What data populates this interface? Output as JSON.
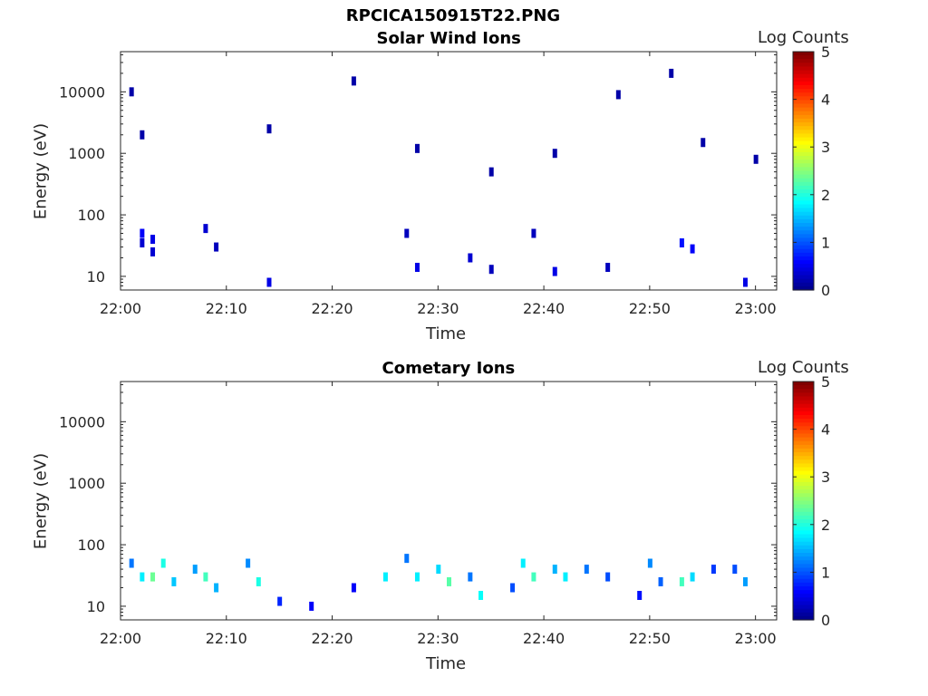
{
  "figure": {
    "title": "RPCICA150915T22.PNG"
  },
  "colorbar": {
    "label": "Log Counts",
    "range": [
      0,
      5
    ],
    "ticks": [
      "0",
      "1",
      "2",
      "3",
      "4",
      "5"
    ]
  },
  "chart_data": [
    {
      "type": "heatmap",
      "title": "Solar Wind Ions",
      "xlabel": "Time",
      "ylabel": "Energy (eV)",
      "yscale": "log",
      "xlim": [
        "22:00",
        "23:02"
      ],
      "ylim": [
        6,
        45000
      ],
      "xticks": [
        "22:00",
        "22:10",
        "22:20",
        "22:30",
        "22:40",
        "22:50",
        "23:00"
      ],
      "yticks": [
        "10",
        "100",
        "1000",
        "10000"
      ],
      "color_scale": "jet",
      "samples": [
        {
          "time": "22:01",
          "energy": 10000,
          "logc": 0.2
        },
        {
          "time": "22:02",
          "energy": 2000,
          "logc": 0.2
        },
        {
          "time": "22:02",
          "energy": 50,
          "logc": 0.6
        },
        {
          "time": "22:02",
          "energy": 35,
          "logc": 0.4
        },
        {
          "time": "22:03",
          "energy": 40,
          "logc": 0.5
        },
        {
          "time": "22:03",
          "energy": 25,
          "logc": 0.4
        },
        {
          "time": "22:08",
          "energy": 60,
          "logc": 0.4
        },
        {
          "time": "22:09",
          "energy": 30,
          "logc": 0.3
        },
        {
          "time": "22:14",
          "energy": 8,
          "logc": 0.5
        },
        {
          "time": "22:14",
          "energy": 2500,
          "logc": 0.2
        },
        {
          "time": "22:22",
          "energy": 15000,
          "logc": 0.2
        },
        {
          "time": "22:27",
          "energy": 50,
          "logc": 0.3
        },
        {
          "time": "22:28",
          "energy": 14,
          "logc": 0.5
        },
        {
          "time": "22:28",
          "energy": 1200,
          "logc": 0.2
        },
        {
          "time": "22:33",
          "energy": 20,
          "logc": 0.4
        },
        {
          "time": "22:35",
          "energy": 13,
          "logc": 0.3
        },
        {
          "time": "22:35",
          "energy": 500,
          "logc": 0.2
        },
        {
          "time": "22:39",
          "energy": 50,
          "logc": 0.3
        },
        {
          "time": "22:41",
          "energy": 12,
          "logc": 0.5
        },
        {
          "time": "22:41",
          "energy": 1000,
          "logc": 0.2
        },
        {
          "time": "22:46",
          "energy": 14,
          "logc": 0.3
        },
        {
          "time": "22:47",
          "energy": 9000,
          "logc": 0.2
        },
        {
          "time": "22:52",
          "energy": 20000,
          "logc": 0.2
        },
        {
          "time": "22:53",
          "energy": 35,
          "logc": 0.7
        },
        {
          "time": "22:54",
          "energy": 28,
          "logc": 0.6
        },
        {
          "time": "22:55",
          "energy": 1500,
          "logc": 0.2
        },
        {
          "time": "22:59",
          "energy": 8,
          "logc": 0.5
        },
        {
          "time": "23:00",
          "energy": 800,
          "logc": 0.2
        }
      ]
    },
    {
      "type": "heatmap",
      "title": "Cometary Ions",
      "xlabel": "Time",
      "ylabel": "Energy (eV)",
      "yscale": "log",
      "xlim": [
        "22:00",
        "23:02"
      ],
      "ylim": [
        6,
        45000
      ],
      "xticks": [
        "22:00",
        "22:10",
        "22:20",
        "22:30",
        "22:40",
        "22:50",
        "23:00"
      ],
      "yticks": [
        "10",
        "100",
        "1000",
        "10000"
      ],
      "color_scale": "jet",
      "samples": [
        {
          "time": "22:01",
          "energy": 50,
          "logc": 1.2
        },
        {
          "time": "22:02",
          "energy": 30,
          "logc": 1.8
        },
        {
          "time": "22:03",
          "energy": 30,
          "logc": 2.4
        },
        {
          "time": "22:04",
          "energy": 50,
          "logc": 2.0
        },
        {
          "time": "22:05",
          "energy": 25,
          "logc": 1.6
        },
        {
          "time": "22:07",
          "energy": 40,
          "logc": 1.4
        },
        {
          "time": "22:08",
          "energy": 30,
          "logc": 2.2
        },
        {
          "time": "22:09",
          "energy": 20,
          "logc": 1.5
        },
        {
          "time": "22:12",
          "energy": 50,
          "logc": 1.3
        },
        {
          "time": "22:13",
          "energy": 25,
          "logc": 2.0
        },
        {
          "time": "22:15",
          "energy": 12,
          "logc": 0.8
        },
        {
          "time": "22:18",
          "energy": 10,
          "logc": 0.6
        },
        {
          "time": "22:22",
          "energy": 20,
          "logc": 0.6
        },
        {
          "time": "22:25",
          "energy": 30,
          "logc": 1.8
        },
        {
          "time": "22:27",
          "energy": 60,
          "logc": 1.2
        },
        {
          "time": "22:28",
          "energy": 30,
          "logc": 1.8
        },
        {
          "time": "22:30",
          "energy": 40,
          "logc": 1.7
        },
        {
          "time": "22:31",
          "energy": 25,
          "logc": 2.3
        },
        {
          "time": "22:33",
          "energy": 30,
          "logc": 1.2
        },
        {
          "time": "22:34",
          "energy": 15,
          "logc": 1.9
        },
        {
          "time": "22:37",
          "energy": 20,
          "logc": 1.0
        },
        {
          "time": "22:38",
          "energy": 50,
          "logc": 1.8
        },
        {
          "time": "22:39",
          "energy": 30,
          "logc": 2.2
        },
        {
          "time": "22:41",
          "energy": 40,
          "logc": 1.5
        },
        {
          "time": "22:42",
          "energy": 30,
          "logc": 1.8
        },
        {
          "time": "22:44",
          "energy": 40,
          "logc": 1.2
        },
        {
          "time": "22:46",
          "energy": 30,
          "logc": 1.0
        },
        {
          "time": "22:49",
          "energy": 15,
          "logc": 0.7
        },
        {
          "time": "22:50",
          "energy": 50,
          "logc": 1.3
        },
        {
          "time": "22:51",
          "energy": 25,
          "logc": 1.1
        },
        {
          "time": "22:53",
          "energy": 25,
          "logc": 2.2
        },
        {
          "time": "22:54",
          "energy": 30,
          "logc": 1.7
        },
        {
          "time": "22:56",
          "energy": 40,
          "logc": 0.9
        },
        {
          "time": "22:58",
          "energy": 40,
          "logc": 1.0
        },
        {
          "time": "22:59",
          "energy": 25,
          "logc": 1.4
        }
      ]
    }
  ]
}
